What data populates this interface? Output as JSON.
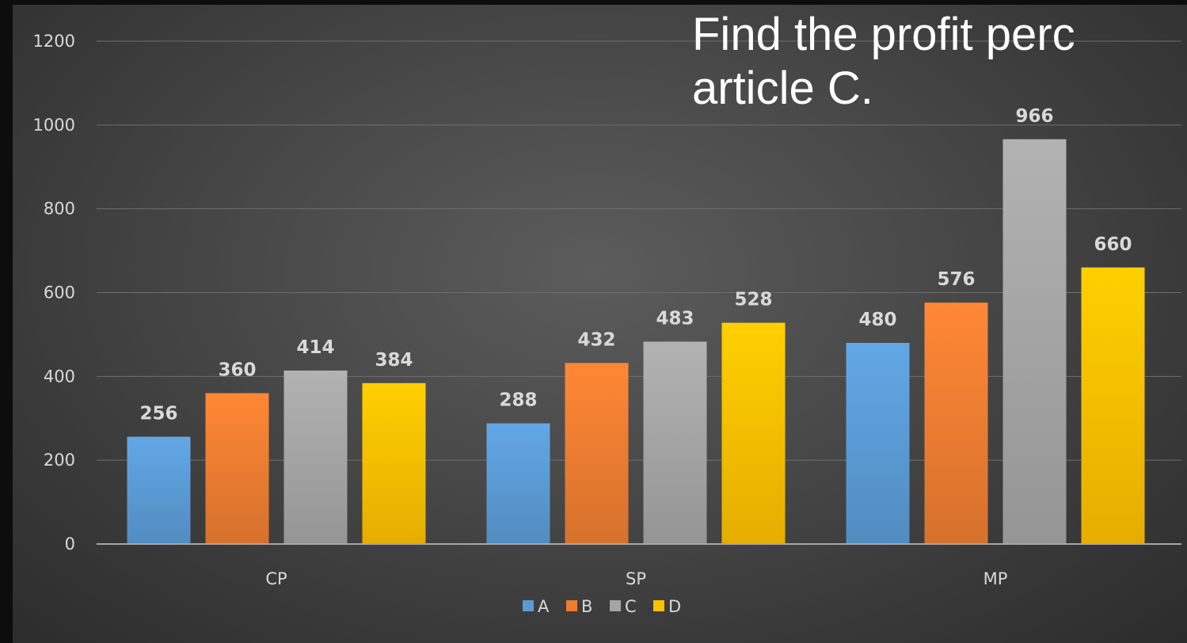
{
  "question": {
    "line1": "Find the profit perc",
    "line2": "article C."
  },
  "colors": {
    "A": "#5b9bd5",
    "B": "#ed7d31",
    "C": "#a5a5a5",
    "D": "#ffc000"
  },
  "chart_data": {
    "type": "bar",
    "categories": [
      "CP",
      "SP",
      "MP"
    ],
    "series": [
      {
        "name": "A",
        "values": [
          256,
          288,
          480
        ]
      },
      {
        "name": "B",
        "values": [
          360,
          432,
          576
        ]
      },
      {
        "name": "C",
        "values": [
          414,
          483,
          966
        ]
      },
      {
        "name": "D",
        "values": [
          384,
          528,
          660
        ]
      }
    ],
    "y_ticks": [
      "0",
      "200",
      "400",
      "600",
      "800",
      "1000",
      "1200"
    ],
    "ylim": [
      0,
      1200
    ],
    "grid": true,
    "legend": "bottom"
  }
}
